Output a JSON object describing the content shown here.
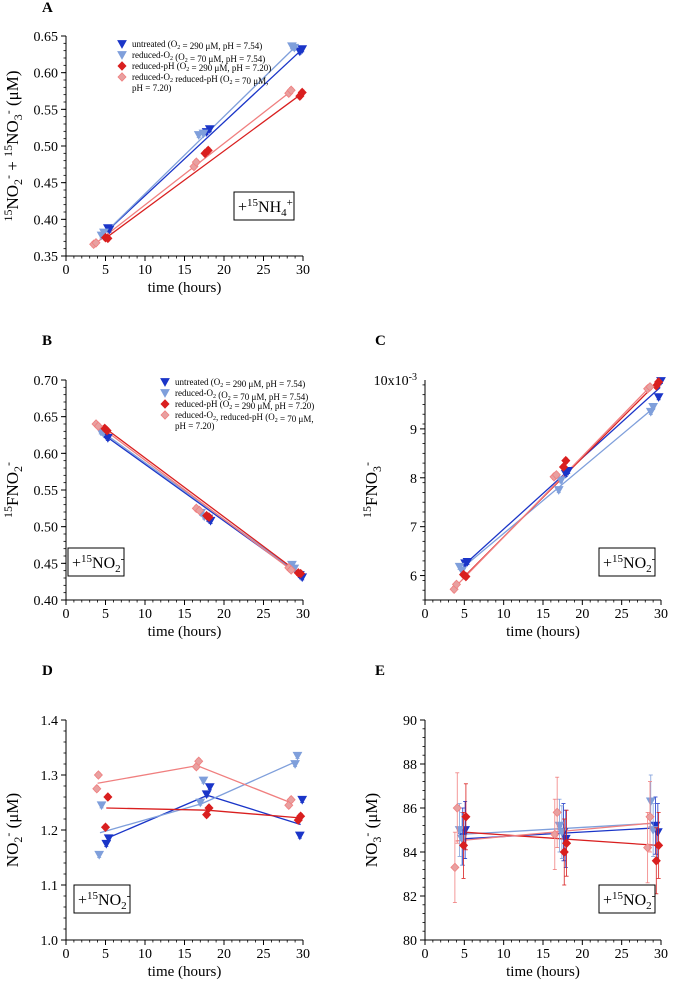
{
  "colors": {
    "untreated": "#1a35c8",
    "reduced_o2": "#7f9fdb",
    "reduced_ph": "#d91f1f",
    "reduced_o2_ph": "#f07f7f",
    "reduced_o2_ph_fill": "#e8a0a0"
  },
  "chart_data": [
    {
      "id": "A",
      "type": "scatter",
      "letter": "A",
      "xlabel": "time (hours)",
      "ylabel": "15NO2- + 15NO3- (μM)",
      "xlim": [
        0,
        30
      ],
      "ylim": [
        0.35,
        0.65
      ],
      "xticks": [
        0,
        5,
        10,
        15,
        20,
        25,
        30
      ],
      "yticks": [
        0.35,
        0.4,
        0.45,
        0.5,
        0.55,
        0.6,
        0.65
      ],
      "tick_decimals": 2,
      "tracer": "+15NH4+",
      "legend": [
        "untreated (O2 = 290 μM, pH = 7.54)",
        "reduced-O2 (O2 = 70 μM, pH = 7.54)",
        "reduced-pH (O2 = 290 μM, pH = 7.20)",
        "reduced-O2   reduced-pH (O2 = 70 μM,",
        "pH = 7.20)"
      ],
      "series": [
        {
          "name": "untreated",
          "x": [
            5.3,
            5.5,
            17.8,
            18.2,
            29.6,
            29.9
          ],
          "y": [
            0.388,
            0.386,
            0.519,
            0.523,
            0.629,
            0.632
          ],
          "fit": [
            [
              5.4,
              0.386
            ],
            [
              29.8,
              0.631
            ]
          ]
        },
        {
          "name": "reduced-O2",
          "x": [
            4.5,
            4.8,
            16.8,
            17.4,
            28.6,
            28.9
          ],
          "y": [
            0.378,
            0.382,
            0.515,
            0.517,
            0.636,
            0.634
          ],
          "fit": [
            [
              4.6,
              0.378
            ],
            [
              29.0,
              0.635
            ]
          ]
        },
        {
          "name": "reduced-pH",
          "x": [
            5.0,
            5.3,
            17.6,
            18.0,
            29.6,
            29.9
          ],
          "y": [
            0.375,
            0.374,
            0.49,
            0.494,
            0.568,
            0.573
          ],
          "fit": [
            [
              5.1,
              0.375
            ],
            [
              29.8,
              0.571
            ]
          ]
        },
        {
          "name": "reduced-O2-pH",
          "x": [
            3.5,
            3.8,
            16.2,
            16.5,
            28.2,
            28.5
          ],
          "y": [
            0.366,
            0.368,
            0.472,
            0.478,
            0.572,
            0.576
          ],
          "fit": [
            [
              3.6,
              0.366
            ],
            [
              28.4,
              0.574
            ]
          ]
        }
      ]
    },
    {
      "id": "B",
      "type": "scatter",
      "letter": "B",
      "xlabel": "time (hours)",
      "ylabel": "15FNO2-",
      "xlim": [
        0,
        30
      ],
      "ylim": [
        0.4,
        0.7
      ],
      "xticks": [
        0,
        5,
        10,
        15,
        20,
        25,
        30
      ],
      "yticks": [
        0.4,
        0.45,
        0.5,
        0.55,
        0.6,
        0.65,
        0.7
      ],
      "tick_decimals": 2,
      "tracer": "+15NO2-",
      "legend": [
        "untreated (O2 = 290 μM, pH = 7.54)",
        "reduced-O2 (O2 = 70 μM, pH = 7.54)",
        "reduced-pH (O2 = 290 μM, pH = 7.20)",
        "reduced-O2,   reduced-pH (O2 = 70 μM,",
        "pH = 7.20)"
      ],
      "series": [
        {
          "name": "untreated",
          "x": [
            5.0,
            5.3,
            18.0,
            18.3,
            29.6,
            29.9
          ],
          "y": [
            0.625,
            0.621,
            0.511,
            0.508,
            0.434,
            0.431
          ],
          "fit": [
            [
              5.1,
              0.623
            ],
            [
              29.8,
              0.432
            ]
          ]
        },
        {
          "name": "reduced-O2",
          "x": [
            4.4,
            4.7,
            17.1,
            17.5,
            28.6,
            28.9
          ],
          "y": [
            0.63,
            0.628,
            0.519,
            0.514,
            0.448,
            0.443
          ],
          "fit": [
            [
              4.5,
              0.63
            ],
            [
              29.0,
              0.44
            ]
          ]
        },
        {
          "name": "reduced-pH",
          "x": [
            4.9,
            5.2,
            17.8,
            18.1,
            29.4,
            29.7
          ],
          "y": [
            0.634,
            0.631,
            0.515,
            0.513,
            0.437,
            0.436
          ],
          "fit": [
            [
              5.0,
              0.634
            ],
            [
              29.6,
              0.436
            ]
          ]
        },
        {
          "name": "reduced-O2-pH",
          "x": [
            3.8,
            4.1,
            16.5,
            16.9,
            28.2,
            28.5
          ],
          "y": [
            0.64,
            0.637,
            0.525,
            0.522,
            0.444,
            0.441
          ],
          "fit": [
            [
              3.9,
              0.64
            ],
            [
              28.4,
              0.442
            ]
          ]
        }
      ]
    },
    {
      "id": "C",
      "type": "scatter",
      "letter": "C",
      "xlabel": "time (hours)",
      "ylabel": "15FNO3-",
      "xlim": [
        0,
        30
      ],
      "ylim": [
        5.5,
        10.0
      ],
      "xticks": [
        0,
        5,
        10,
        15,
        20,
        25,
        30
      ],
      "yticks": [
        6,
        7,
        8,
        9
      ],
      "tick_decimals": 0,
      "top_label": "10x10-3",
      "tracer": "+15NO2-",
      "series": [
        {
          "name": "untreated",
          "x": [
            5.1,
            5.4,
            17.9,
            18.2,
            29.7,
            30.0
          ],
          "y": [
            6.25,
            6.28,
            8.08,
            8.14,
            9.65,
            9.98
          ],
          "fit": [
            [
              5.2,
              6.25
            ],
            [
              29.9,
              9.85
            ]
          ]
        },
        {
          "name": "reduced-O2",
          "x": [
            4.4,
            4.7,
            17.0,
            17.3,
            28.7,
            29.0
          ],
          "y": [
            6.18,
            6.1,
            7.75,
            7.95,
            9.35,
            9.45
          ],
          "fit": [
            [
              4.5,
              6.12
            ],
            [
              29.0,
              9.42
            ]
          ]
        },
        {
          "name": "reduced-pH",
          "x": [
            4.9,
            5.2,
            17.6,
            17.9,
            29.4,
            29.7
          ],
          "y": [
            6.02,
            5.98,
            8.22,
            8.35,
            9.88,
            9.96
          ],
          "fit": [
            [
              5.0,
              5.98
            ],
            [
              29.7,
              9.98
            ]
          ]
        },
        {
          "name": "reduced-O2-pH",
          "x": [
            3.7,
            4.0,
            16.4,
            16.7,
            28.3,
            28.6
          ],
          "y": [
            5.72,
            5.82,
            8.02,
            8.06,
            9.82,
            9.86
          ],
          "fit": [
            [
              3.8,
              5.76
            ],
            [
              28.6,
              9.86
            ]
          ]
        }
      ]
    },
    {
      "id": "D",
      "type": "scatter",
      "letter": "D",
      "xlabel": "time (hours)",
      "ylabel": "NO2- (μM)",
      "xlim": [
        0,
        30
      ],
      "ylim": [
        1.0,
        1.4
      ],
      "xticks": [
        0,
        5,
        10,
        15,
        20,
        25,
        30
      ],
      "yticks": [
        1.0,
        1.1,
        1.2,
        1.3,
        1.4
      ],
      "tick_decimals": 1,
      "tracer": "+15NO2-",
      "series": [
        {
          "name": "untreated",
          "x": [
            5.1,
            5.4,
            17.8,
            18.2,
            29.6,
            29.9
          ],
          "y": [
            1.175,
            1.185,
            1.265,
            1.278,
            1.19,
            1.255
          ],
          "fit": [
            [
              5.2,
              1.185
            ],
            [
              17.9,
              1.263
            ],
            [
              29.7,
              1.21
            ]
          ]
        },
        {
          "name": "reduced-O2",
          "x": [
            4.2,
            4.5,
            17.0,
            17.4,
            29.0,
            29.3
          ],
          "y": [
            1.155,
            1.245,
            1.25,
            1.29,
            1.32,
            1.335
          ],
          "fit": [
            [
              4.3,
              1.195
            ],
            [
              17.2,
              1.248
            ],
            [
              29.2,
              1.325
            ]
          ]
        },
        {
          "name": "reduced-pH",
          "x": [
            5.0,
            5.3,
            17.8,
            18.1,
            29.4,
            29.7
          ],
          "y": [
            1.205,
            1.26,
            1.228,
            1.24,
            1.218,
            1.225
          ],
          "fit": [
            [
              5.1,
              1.24
            ],
            [
              17.9,
              1.236
            ],
            [
              29.6,
              1.222
            ]
          ]
        },
        {
          "name": "reduced-O2-pH",
          "x": [
            3.9,
            4.1,
            16.5,
            16.8,
            28.2,
            28.5
          ],
          "y": [
            1.275,
            1.3,
            1.315,
            1.325,
            1.245,
            1.255
          ],
          "fit": [
            [
              4.0,
              1.285
            ],
            [
              16.6,
              1.317
            ],
            [
              28.4,
              1.25
            ]
          ]
        }
      ]
    },
    {
      "id": "E",
      "type": "scatter",
      "letter": "E",
      "xlabel": "time (hours)",
      "ylabel": "NO3- (μM)",
      "xlim": [
        0,
        30
      ],
      "ylim": [
        80,
        90
      ],
      "xticks": [
        0,
        5,
        10,
        15,
        20,
        25,
        30
      ],
      "yticks": [
        80,
        82,
        84,
        86,
        88,
        90
      ],
      "tick_decimals": 0,
      "tracer": "+15NO2-",
      "series": [
        {
          "name": "untreated",
          "x": [
            4.8,
            5.1,
            17.6,
            17.9,
            29.3,
            29.6
          ],
          "y": [
            84.7,
            85.0,
            84.9,
            84.6,
            85.2,
            84.9
          ],
          "fit": [
            [
              4.9,
              84.6
            ],
            [
              29.5,
              85.1
            ]
          ],
          "err": 1.3
        },
        {
          "name": "reduced-O2",
          "x": [
            4.4,
            4.7,
            17.1,
            17.4,
            28.7,
            29.0
          ],
          "y": [
            85.0,
            84.6,
            85.2,
            84.9,
            86.3,
            85.0
          ],
          "fit": [
            [
              4.5,
              84.8
            ],
            [
              28.9,
              85.3
            ]
          ],
          "err": 1.2
        },
        {
          "name": "reduced-pH",
          "x": [
            4.9,
            5.2,
            17.7,
            18.0,
            29.4,
            29.7
          ],
          "y": [
            84.3,
            85.6,
            84.0,
            84.4,
            83.6,
            84.3
          ],
          "fit": [
            [
              5.0,
              84.9
            ],
            [
              29.6,
              84.3
            ]
          ],
          "err": 1.5
        },
        {
          "name": "reduced-O2-pH",
          "x": [
            3.8,
            4.1,
            16.5,
            16.8,
            28.3,
            28.6
          ],
          "y": [
            83.3,
            86.0,
            84.8,
            85.8,
            84.2,
            85.6
          ],
          "fit": [
            [
              3.9,
              84.5
            ],
            [
              28.5,
              85.3
            ]
          ],
          "err": 1.6
        }
      ]
    }
  ]
}
